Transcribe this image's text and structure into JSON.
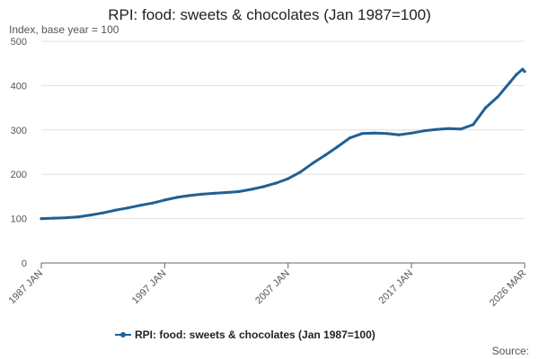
{
  "chart_data": {
    "type": "line",
    "title": "RPI: food: sweets & chocolates (Jan 1987=100)",
    "subtitle": "Index, base year = 100",
    "xlabel": "",
    "ylabel": "",
    "ylim": [
      0,
      500
    ],
    "yticks": [
      0,
      100,
      200,
      300,
      400,
      500
    ],
    "xrange": [
      1987.0,
      2026.17
    ],
    "xticks": [
      {
        "value": 1987.0,
        "label": "1987 JAN"
      },
      {
        "value": 1997.0,
        "label": "1997 JAN"
      },
      {
        "value": 2007.0,
        "label": "2007 JAN"
      },
      {
        "value": 2017.0,
        "label": "2017 JAN"
      },
      {
        "value": 2026.17,
        "label": "2026 MAR"
      }
    ],
    "grid": true,
    "legend_position": "bottom",
    "series": [
      {
        "name": "RPI: food: sweets & chocolates (Jan 1987=100)",
        "color": "#206095",
        "points": [
          [
            1987.0,
            100
          ],
          [
            1988.0,
            101
          ],
          [
            1989.0,
            102
          ],
          [
            1990.0,
            104
          ],
          [
            1991.0,
            108
          ],
          [
            1992.0,
            113
          ],
          [
            1993.0,
            119
          ],
          [
            1994.0,
            124
          ],
          [
            1995.0,
            130
          ],
          [
            1996.0,
            135
          ],
          [
            1997.0,
            142
          ],
          [
            1998.0,
            148
          ],
          [
            1999.0,
            152
          ],
          [
            2000.0,
            155
          ],
          [
            2001.0,
            157
          ],
          [
            2002.0,
            159
          ],
          [
            2003.0,
            161
          ],
          [
            2004.0,
            166
          ],
          [
            2005.0,
            172
          ],
          [
            2006.0,
            180
          ],
          [
            2007.0,
            190
          ],
          [
            2008.0,
            205
          ],
          [
            2009.0,
            225
          ],
          [
            2010.0,
            243
          ],
          [
            2011.0,
            262
          ],
          [
            2012.0,
            282
          ],
          [
            2013.0,
            292
          ],
          [
            2014.0,
            293
          ],
          [
            2015.0,
            292
          ],
          [
            2016.0,
            289
          ],
          [
            2017.0,
            293
          ],
          [
            2018.0,
            298
          ],
          [
            2019.0,
            301
          ],
          [
            2020.0,
            303
          ],
          [
            2021.0,
            302
          ],
          [
            2022.0,
            312
          ],
          [
            2023.0,
            350
          ],
          [
            2024.0,
            375
          ],
          [
            2025.0,
            408
          ],
          [
            2025.5,
            425
          ],
          [
            2026.0,
            437
          ],
          [
            2026.17,
            432
          ]
        ]
      }
    ]
  },
  "source_label": "Source:"
}
